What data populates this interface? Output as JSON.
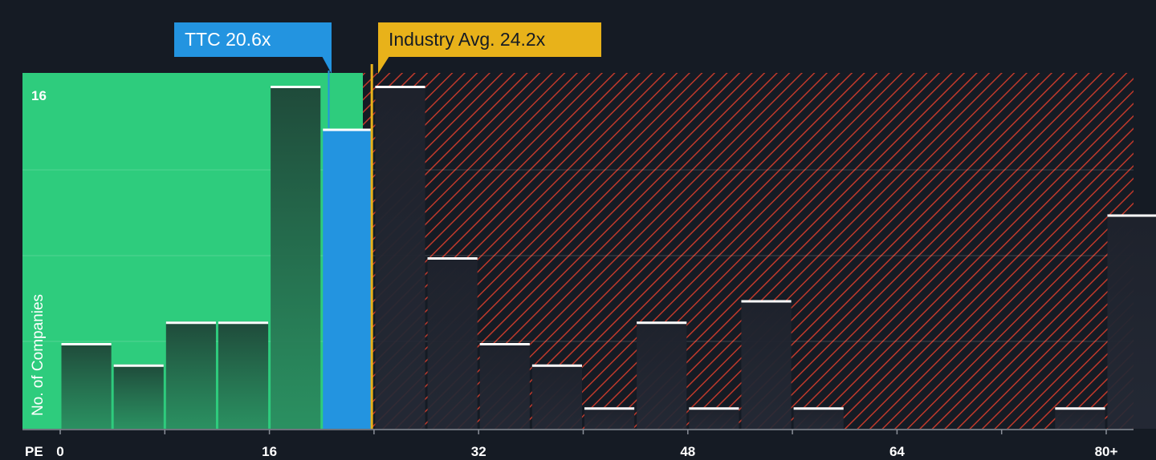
{
  "colors": {
    "background": "#151b24",
    "fair_zone": "#2ecc7d",
    "overvalued_zone": "#c0392b",
    "company_bar": "#2394e0",
    "industry_line": "#e8b21a",
    "bar_dark": "#1f4a3a",
    "cap_line": "#ffffff"
  },
  "callouts": {
    "company": "TTC 20.6x",
    "industry": "Industry Avg. 24.2x"
  },
  "chart_data": {
    "type": "bar",
    "xlabel": "PE",
    "ylabel": "No. of Companies",
    "x_ticks": [
      "0",
      "16",
      "32",
      "48",
      "64",
      "80+"
    ],
    "y_tick_labels": [
      "16"
    ],
    "ylim": [
      0,
      16.5
    ],
    "company": {
      "name": "TTC",
      "pe": 20.6
    },
    "industry_avg_pe": 24.2,
    "bin_width": 4,
    "bins": [
      {
        "start": 0,
        "count": 4
      },
      {
        "start": 4,
        "count": 3
      },
      {
        "start": 8,
        "count": 5
      },
      {
        "start": 12,
        "count": 5
      },
      {
        "start": 16,
        "count": 16
      },
      {
        "start": 20,
        "count": 14,
        "highlight": true
      },
      {
        "start": 24,
        "count": 16
      },
      {
        "start": 28,
        "count": 8
      },
      {
        "start": 32,
        "count": 4
      },
      {
        "start": 36,
        "count": 3
      },
      {
        "start": 40,
        "count": 1
      },
      {
        "start": 44,
        "count": 5
      },
      {
        "start": 48,
        "count": 1
      },
      {
        "start": 52,
        "count": 6
      },
      {
        "start": 56,
        "count": 1
      },
      {
        "start": 60,
        "count": 0
      },
      {
        "start": 64,
        "count": 0
      },
      {
        "start": 68,
        "count": 0
      },
      {
        "start": 72,
        "count": 0
      },
      {
        "start": 76,
        "count": 1
      },
      {
        "start": 80,
        "count": 10
      }
    ],
    "grid": true
  }
}
